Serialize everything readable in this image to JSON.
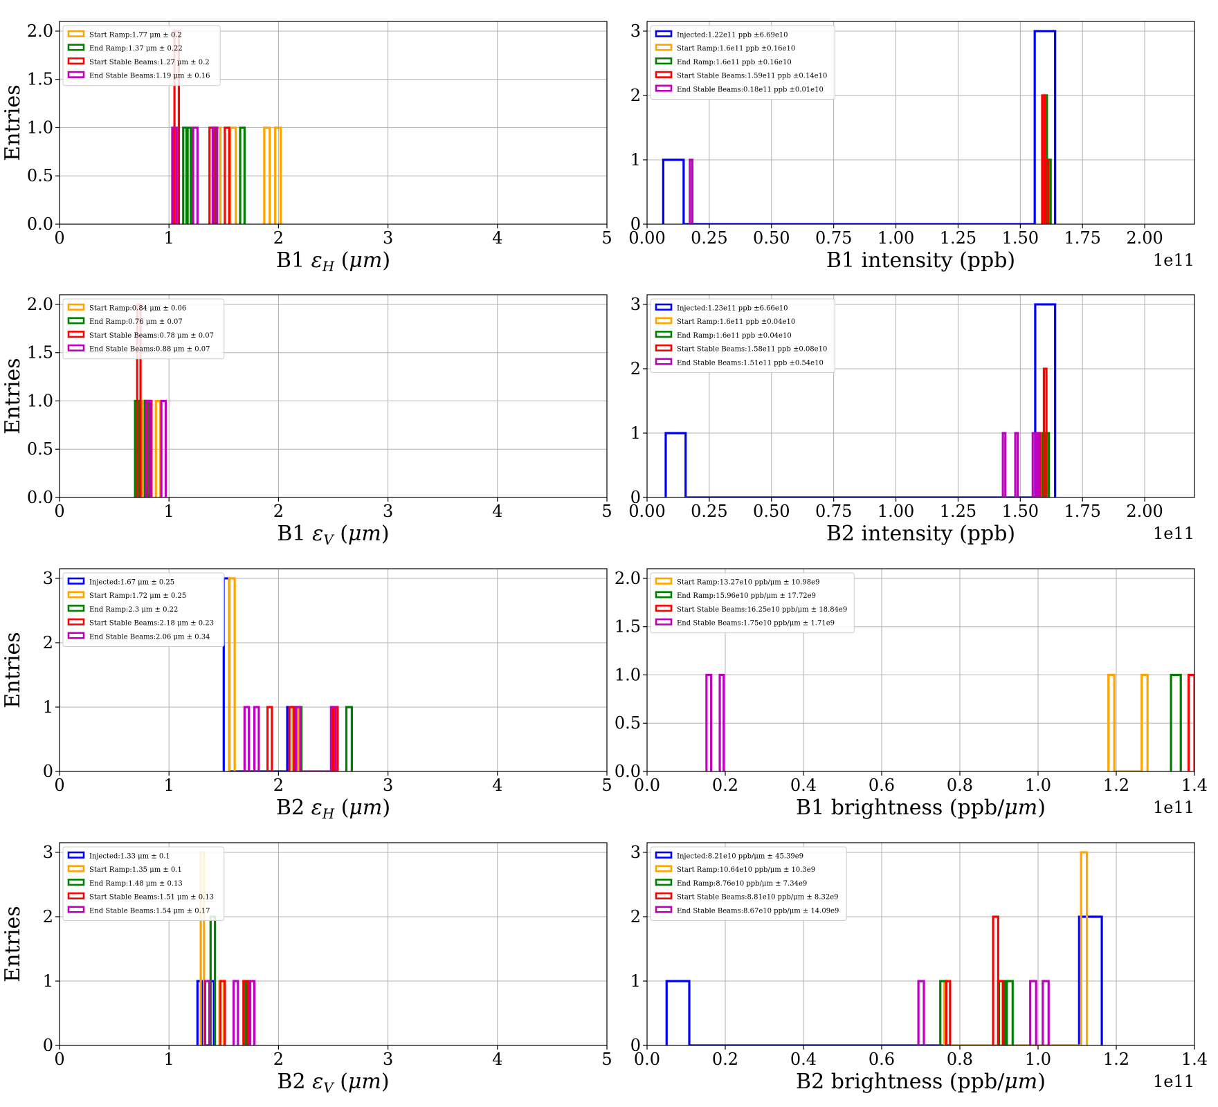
{
  "chart_data": [
    {
      "type": "histogram",
      "xlabel": "B1 ε_H (μm)",
      "xlabel_parts": [
        "B1 ",
        "ε",
        "H",
        " (",
        "μm",
        ")"
      ],
      "ylabel": "Entries",
      "xlim": [
        0,
        5
      ],
      "ylim": [
        0,
        2.1
      ],
      "xticks": [
        0,
        1,
        2,
        3,
        4,
        5
      ],
      "xtick_labels": [
        "0",
        "1",
        "2",
        "3",
        "4",
        "5"
      ],
      "yticks": [
        0,
        0.5,
        1.0,
        1.5,
        2.0
      ],
      "ytick_labels": [
        "0.0",
        "0.5",
        "1.0",
        "1.5",
        "2.0"
      ],
      "offset_label": "",
      "grid": true,
      "legend_position": "upper-left",
      "series": [
        {
          "name": "Start Ramp:1.77 μm ± 0.2",
          "color": "#ffa500",
          "bins": [
            [
              1.42,
              1.47,
              1
            ],
            [
              1.56,
              1.61,
              1
            ],
            [
              1.87,
              1.92,
              1
            ],
            [
              1.97,
              2.02,
              1
            ]
          ]
        },
        {
          "name": "End Ramp:1.37 μm ± 0.22",
          "color": "#008000",
          "bins": [
            [
              1.13,
              1.16,
              1
            ],
            [
              1.17,
              1.2,
              1
            ],
            [
              1.4,
              1.43,
              1
            ],
            [
              1.65,
              1.69,
              1
            ]
          ]
        },
        {
          "name": "Start Stable Beams:1.27 μm ± 0.2",
          "color": "#ff0000",
          "bins": [
            [
              1.05,
              1.09,
              2
            ],
            [
              1.37,
              1.41,
              1
            ],
            [
              1.51,
              1.55,
              1
            ]
          ]
        },
        {
          "name": "End Stable Beams:1.19 μm ± 0.16",
          "color": "#bf00bf",
          "bins": [
            [
              1.03,
              1.07,
              1
            ],
            [
              1.22,
              1.26,
              1
            ],
            [
              1.4,
              1.44,
              1
            ]
          ]
        }
      ]
    },
    {
      "type": "histogram",
      "xlabel": "B1 intensity (ppb)",
      "xlabel_parts": [
        "B1 intensity (ppb)"
      ],
      "ylabel": "",
      "xlim": [
        0,
        2.2
      ],
      "ylim": [
        0,
        3.15
      ],
      "xticks": [
        0,
        0.25,
        0.5,
        0.75,
        1.0,
        1.25,
        1.5,
        1.75,
        2.0
      ],
      "xtick_labels": [
        "0.00",
        "0.25",
        "0.50",
        "0.75",
        "1.00",
        "1.25",
        "1.50",
        "1.75",
        "2.00"
      ],
      "yticks": [
        0,
        1,
        2,
        3
      ],
      "ytick_labels": [
        "0",
        "1",
        "2",
        "3"
      ],
      "offset_label": "1e11",
      "grid": true,
      "legend_position": "upper-left",
      "series": [
        {
          "name": "Injected:1.22e11 ppb ±6.69e10",
          "color": "#0000ff",
          "bins": [
            [
              0.065,
              0.147,
              1
            ],
            [
              0.147,
              1.558,
              0
            ],
            [
              1.558,
              1.64,
              3
            ]
          ]
        },
        {
          "name": "Start Ramp:1.6e11 ppb ±0.16e10",
          "color": "#ffa500",
          "bins": [
            [
              1.595,
              1.605,
              2
            ],
            [
              1.605,
              1.615,
              1
            ]
          ]
        },
        {
          "name": "End Ramp:1.6e11 ppb ±0.16e10",
          "color": "#008000",
          "bins": [
            [
              1.597,
              1.607,
              2
            ],
            [
              1.612,
              1.622,
              1
            ]
          ]
        },
        {
          "name": "Start Stable Beams:1.59e11 ppb ±0.14e10",
          "color": "#ff0000",
          "bins": [
            [
              1.588,
              1.598,
              2
            ],
            [
              1.602,
              1.612,
              1
            ]
          ]
        },
        {
          "name": "End Stable Beams:0.18e11 ppb ±0.01e10",
          "color": "#bf00bf",
          "bins": [
            [
              0.172,
              0.182,
              1
            ]
          ]
        }
      ]
    },
    {
      "type": "histogram",
      "xlabel": "B1 ε_V (μm)",
      "xlabel_parts": [
        "B1 ",
        "ε",
        "V",
        " (",
        "μm",
        ")"
      ],
      "ylabel": "Entries",
      "xlim": [
        0,
        5
      ],
      "ylim": [
        0,
        2.1
      ],
      "xticks": [
        0,
        1,
        2,
        3,
        4,
        5
      ],
      "xtick_labels": [
        "0",
        "1",
        "2",
        "3",
        "4",
        "5"
      ],
      "yticks": [
        0,
        0.5,
        1.0,
        1.5,
        2.0
      ],
      "ytick_labels": [
        "0.0",
        "0.5",
        "1.0",
        "1.5",
        "2.0"
      ],
      "offset_label": "",
      "grid": true,
      "legend_position": "upper-left",
      "series": [
        {
          "name": "Start Ramp:0.84 μm ± 0.06",
          "color": "#ffa500",
          "bins": [
            [
              0.76,
              0.8,
              1
            ],
            [
              0.88,
              0.92,
              1
            ]
          ]
        },
        {
          "name": "End Ramp:0.76 μm ± 0.07",
          "color": "#008000",
          "bins": [
            [
              0.69,
              0.73,
              1
            ],
            [
              0.78,
              0.82,
              1
            ]
          ]
        },
        {
          "name": "Start Stable Beams:0.78 μm ± 0.07",
          "color": "#ff0000",
          "bins": [
            [
              0.71,
              0.74,
              2
            ],
            [
              0.8,
              0.84,
              1
            ]
          ]
        },
        {
          "name": "End Stable Beams:0.88 μm ± 0.07",
          "color": "#bf00bf",
          "bins": [
            [
              0.79,
              0.83,
              1
            ],
            [
              0.93,
              0.97,
              1
            ]
          ]
        }
      ]
    },
    {
      "type": "histogram",
      "xlabel": "B2 intensity (ppb)",
      "xlabel_parts": [
        "B2 intensity (ppb)"
      ],
      "ylabel": "",
      "xlim": [
        0,
        2.2
      ],
      "ylim": [
        0,
        3.15
      ],
      "xticks": [
        0,
        0.25,
        0.5,
        0.75,
        1.0,
        1.25,
        1.5,
        1.75,
        2.0
      ],
      "xtick_labels": [
        "0.00",
        "0.25",
        "0.50",
        "0.75",
        "1.00",
        "1.25",
        "1.50",
        "1.75",
        "2.00"
      ],
      "yticks": [
        0,
        1,
        2,
        3
      ],
      "ytick_labels": [
        "0",
        "1",
        "2",
        "3"
      ],
      "offset_label": "1e11",
      "grid": true,
      "legend_position": "upper-left",
      "series": [
        {
          "name": "Injected:1.23e11 ppb ±6.66e10",
          "color": "#0000ff",
          "bins": [
            [
              0.075,
              0.155,
              1
            ],
            [
              0.155,
              1.56,
              0
            ],
            [
              1.56,
              1.64,
              3
            ]
          ]
        },
        {
          "name": "Start Ramp:1.6e11 ppb ±0.04e10",
          "color": "#ffa500",
          "bins": [
            [
              1.585,
              1.595,
              1
            ],
            [
              1.6,
              1.61,
              1
            ]
          ]
        },
        {
          "name": "End Ramp:1.6e11 ppb ±0.04e10",
          "color": "#008000",
          "bins": [
            [
              1.59,
              1.6,
              1
            ],
            [
              1.605,
              1.615,
              1
            ]
          ]
        },
        {
          "name": "Start Stable Beams:1.58e11 ppb ±0.08e10",
          "color": "#ff0000",
          "bins": [
            [
              1.595,
              1.605,
              2
            ],
            [
              1.57,
              1.58,
              1
            ]
          ]
        },
        {
          "name": "End Stable Beams:1.51e11 ppb ±0.54e10",
          "color": "#bf00bf",
          "bins": [
            [
              1.43,
              1.44,
              1
            ],
            [
              1.48,
              1.49,
              1
            ],
            [
              1.55,
              1.56,
              1
            ],
            [
              1.565,
              1.575,
              1
            ]
          ]
        }
      ]
    },
    {
      "type": "histogram",
      "xlabel": "B2 ε_H (μm)",
      "xlabel_parts": [
        "B2 ",
        "ε",
        "H",
        " (",
        "μm",
        ")"
      ],
      "ylabel": "Entries",
      "xlim": [
        0,
        5
      ],
      "ylim": [
        0,
        3.15
      ],
      "xticks": [
        0,
        1,
        2,
        3,
        4,
        5
      ],
      "xtick_labels": [
        "0",
        "1",
        "2",
        "3",
        "4",
        "5"
      ],
      "yticks": [
        0,
        1,
        2,
        3
      ],
      "ytick_labels": [
        "0",
        "1",
        "2",
        "3"
      ],
      "offset_label": "",
      "grid": true,
      "legend_position": "upper-left",
      "series": [
        {
          "name": "Injected:1.67 μm ± 0.25",
          "color": "#0000ff",
          "bins": [
            [
              1.5,
              1.55,
              3
            ],
            [
              1.55,
              2.08,
              0
            ],
            [
              2.08,
              2.13,
              1
            ]
          ]
        },
        {
          "name": "Start Ramp:1.72 μm ± 0.25",
          "color": "#ffa500",
          "bins": [
            [
              1.55,
              1.6,
              3
            ],
            [
              2.13,
              2.18,
              1
            ]
          ]
        },
        {
          "name": "End Ramp:2.3 μm ± 0.22",
          "color": "#008000",
          "bins": [
            [
              2.16,
              2.21,
              1
            ],
            [
              2.62,
              2.67,
              1
            ]
          ]
        },
        {
          "name": "Start Stable Beams:2.18 μm ± 0.23",
          "color": "#ff0000",
          "bins": [
            [
              1.9,
              1.94,
              1
            ],
            [
              2.1,
              2.14,
              1
            ],
            [
              2.5,
              2.54,
              1
            ]
          ]
        },
        {
          "name": "End Stable Beams:2.06 μm ± 0.34",
          "color": "#bf00bf",
          "bins": [
            [
              1.69,
              1.73,
              1
            ],
            [
              1.78,
              1.82,
              1
            ],
            [
              2.16,
              2.2,
              1
            ],
            [
              2.2,
              2.48,
              0
            ],
            [
              2.48,
              2.52,
              1
            ]
          ]
        }
      ]
    },
    {
      "type": "histogram",
      "xlabel": "B1 brightness (ppb/μm)",
      "xlabel_parts": [
        "B1 brightness (ppb/",
        "μm",
        ")"
      ],
      "ylabel": "",
      "xlim": [
        0,
        1.4
      ],
      "ylim": [
        0,
        2.1
      ],
      "xticks": [
        0,
        0.2,
        0.4,
        0.6,
        0.8,
        1.0,
        1.2,
        1.4
      ],
      "xtick_labels": [
        "0.0",
        "0.2",
        "0.4",
        "0.6",
        "0.8",
        "1.0",
        "1.2",
        "1.4"
      ],
      "yticks": [
        0,
        0.5,
        1.0,
        1.5,
        2.0
      ],
      "ytick_labels": [
        "0.0",
        "0.5",
        "1.0",
        "1.5",
        "2.0"
      ],
      "offset_label": "1e11",
      "grid": true,
      "legend_position": "upper-left",
      "series": [
        {
          "name": "Start Ramp:13.27e10 ppb/μm ± 10.98e9",
          "color": "#ffa500",
          "bins": [
            [
              1.18,
              1.195,
              1
            ],
            [
              1.195,
              1.265,
              0
            ],
            [
              1.265,
              1.28,
              1
            ]
          ]
        },
        {
          "name": "End Ramp:15.96e10 ppb/μm ± 17.72e9",
          "color": "#008000",
          "bins": [
            [
              1.34,
              1.365,
              1
            ]
          ]
        },
        {
          "name": "Start Stable Beams:16.25e10 ppb/μm ± 18.84e9",
          "color": "#ff0000",
          "bins": [
            [
              1.385,
              1.4,
              1
            ]
          ]
        },
        {
          "name": "End Stable Beams:1.75e10 ppb/μm ± 1.71e9",
          "color": "#bf00bf",
          "bins": [
            [
              0.152,
              0.164,
              1
            ],
            [
              0.186,
              0.196,
              1
            ]
          ]
        }
      ]
    },
    {
      "type": "histogram",
      "xlabel": "B2 ε_V (μm)",
      "xlabel_parts": [
        "B2 ",
        "ε",
        "V",
        " (",
        "μm",
        ")"
      ],
      "ylabel": "Entries",
      "xlim": [
        0,
        5
      ],
      "ylim": [
        0,
        3.15
      ],
      "xticks": [
        0,
        1,
        2,
        3,
        4,
        5
      ],
      "xtick_labels": [
        "0",
        "1",
        "2",
        "3",
        "4",
        "5"
      ],
      "yticks": [
        0,
        1,
        2,
        3
      ],
      "ytick_labels": [
        "0",
        "1",
        "2",
        "3"
      ],
      "offset_label": "",
      "grid": true,
      "legend_position": "upper-left",
      "series": [
        {
          "name": "Injected:1.33 μm ± 0.1",
          "color": "#0000ff",
          "bins": [
            [
              1.26,
              1.3,
              1
            ],
            [
              1.3,
              1.37,
              0
            ],
            [
              1.37,
              1.41,
              1
            ]
          ]
        },
        {
          "name": "Start Ramp:1.35 μm ± 0.1",
          "color": "#ffa500",
          "bins": [
            [
              1.29,
              1.32,
              3
            ],
            [
              1.46,
              1.5,
              1
            ]
          ]
        },
        {
          "name": "End Ramp:1.48 μm ± 0.13",
          "color": "#008000",
          "bins": [
            [
              1.38,
              1.42,
              2
            ],
            [
              1.7,
              1.74,
              1
            ]
          ]
        },
        {
          "name": "Start Stable Beams:1.51 μm ± 0.13",
          "color": "#ff0000",
          "bins": [
            [
              1.47,
              1.51,
              1
            ],
            [
              1.68,
              1.72,
              1
            ]
          ]
        },
        {
          "name": "End Stable Beams:1.54 μm ± 0.17",
          "color": "#bf00bf",
          "bins": [
            [
              1.33,
              1.37,
              1
            ],
            [
              1.59,
              1.63,
              1
            ],
            [
              1.74,
              1.78,
              1
            ]
          ]
        }
      ]
    },
    {
      "type": "histogram",
      "xlabel": "B2 brightness (ppb/μm)",
      "xlabel_parts": [
        "B2 brightness (ppb/",
        "μm",
        ")"
      ],
      "ylabel": "",
      "xlim": [
        0,
        1.4
      ],
      "ylim": [
        0,
        3.15
      ],
      "xticks": [
        0,
        0.2,
        0.4,
        0.6,
        0.8,
        1.0,
        1.2,
        1.4
      ],
      "xtick_labels": [
        "0.0",
        "0.2",
        "0.4",
        "0.6",
        "0.8",
        "1.0",
        "1.2",
        "1.4"
      ],
      "yticks": [
        0,
        1,
        2,
        3
      ],
      "ytick_labels": [
        "0",
        "1",
        "2",
        "3"
      ],
      "offset_label": "1e11",
      "grid": true,
      "legend_position": "upper-left",
      "series": [
        {
          "name": "Injected:8.21e10 ppb/μm ± 45.39e9",
          "color": "#0000ff",
          "bins": [
            [
              0.05,
              0.108,
              1
            ],
            [
              0.108,
              1.105,
              0
            ],
            [
              1.105,
              1.163,
              2
            ]
          ]
        },
        {
          "name": "Start Ramp:10.64e10 ppb/μm ± 10.3e9",
          "color": "#ffa500",
          "bins": [
            [
              0.76,
              0.775,
              1
            ],
            [
              0.775,
              1.11,
              0
            ],
            [
              1.11,
              1.125,
              3
            ]
          ]
        },
        {
          "name": "End Ramp:8.76e10 ppb/μm ± 7.34e9",
          "color": "#008000",
          "bins": [
            [
              0.75,
              0.765,
              1
            ],
            [
              0.9,
              0.915,
              1
            ],
            [
              0.92,
              0.935,
              1
            ]
          ]
        },
        {
          "name": "Start Stable Beams:8.81e10 ppb/μm ± 8.32e9",
          "color": "#ff0000",
          "bins": [
            [
              0.765,
              0.775,
              1
            ],
            [
              0.885,
              0.898,
              2
            ],
            [
              0.898,
              0.91,
              1
            ]
          ]
        },
        {
          "name": "End Stable Beams:8.67e10 ppb/μm ± 14.09e9",
          "color": "#bf00bf",
          "bins": [
            [
              0.694,
              0.708,
              1
            ],
            [
              0.98,
              0.995,
              1
            ],
            [
              1.012,
              1.027,
              1
            ]
          ]
        }
      ]
    }
  ]
}
